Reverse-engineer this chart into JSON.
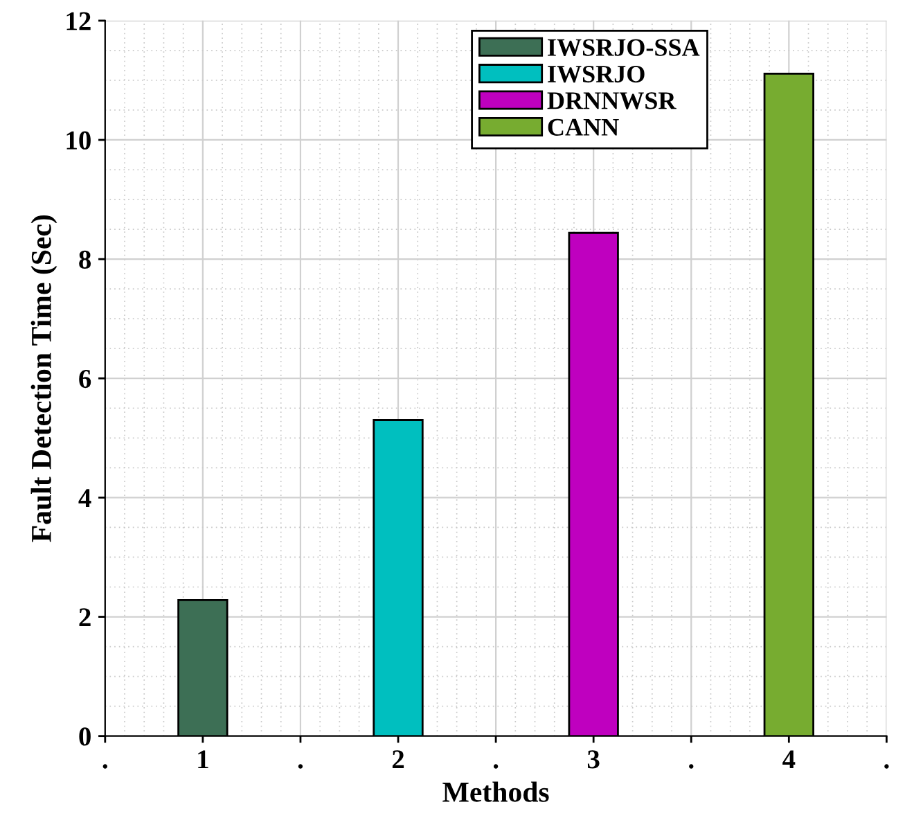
{
  "chart_data": {
    "type": "bar",
    "xlabel": "Methods",
    "ylabel": "Fault Detection Time (Sec)",
    "x": [
      1,
      2,
      3,
      4
    ],
    "series": [
      {
        "name": "IWSRJO-SSA",
        "color": "#3d6f55",
        "values": [
          2.28,
          null,
          null,
          null
        ]
      },
      {
        "name": "IWSRJO",
        "color": "#00bfbf",
        "values": [
          null,
          5.3,
          null,
          null
        ]
      },
      {
        "name": "DRNNWSR",
        "color": "#bf00bf",
        "values": [
          null,
          null,
          8.44,
          null
        ]
      },
      {
        "name": "CANN",
        "color": "#77ac30",
        "values": [
          null,
          null,
          null,
          11.11
        ]
      }
    ],
    "xlim": [
      0.5,
      4.5
    ],
    "xticks": [
      {
        "value": 0.5,
        "label": "."
      },
      1,
      {
        "value": 1.5,
        "label": "."
      },
      2,
      {
        "value": 2.5,
        "label": "."
      },
      3,
      {
        "value": 3.5,
        "label": "."
      },
      4,
      {
        "value": 4.5,
        "label": "."
      }
    ],
    "ylim": [
      0,
      12
    ],
    "yticks": [
      0,
      2,
      4,
      6,
      8,
      10,
      12
    ],
    "grid": true,
    "legend": "top"
  }
}
